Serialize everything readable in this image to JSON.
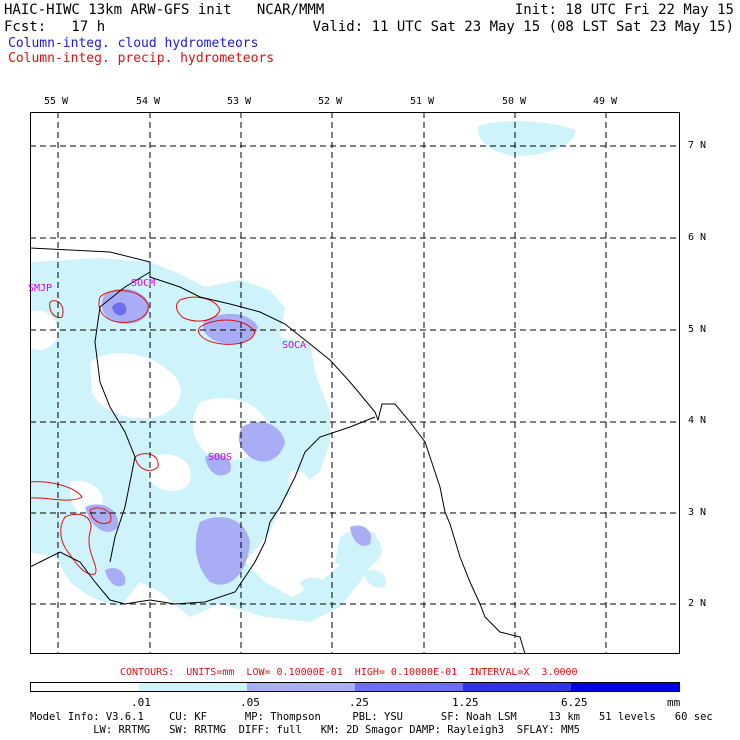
{
  "header": {
    "line1_left": "HAIC-HIWC 13km ARW-GFS init   NCAR/MMM",
    "line1_right": "Init: 18 UTC Fri 22 May 15",
    "line2_left": "Fcst:   17 h",
    "line2_right": "Valid: 11 UTC Sat 23 May 15 (08 LST Sat 23 May 15)",
    "legend_blue": "Column-integ. cloud hydrometeors",
    "legend_red": "Column-integ. precip. hydrometeors"
  },
  "map": {
    "lon_labels": [
      "55 W",
      "54 W",
      "53 W",
      "52 W",
      "51 W",
      "50 W",
      "49 W"
    ],
    "lat_labels": [
      "7 N",
      "6 N",
      "5 N",
      "4 N",
      "3 N",
      "2 N"
    ],
    "station_labels": [
      "SMJP",
      "SOCM",
      "SOCA",
      "SOOS"
    ],
    "fill_colors": [
      "#ffffff",
      "#cef3fb",
      "#a9adf6",
      "#6e6ef0",
      "#3232e6",
      "#0000e8"
    ]
  },
  "contours_text": "CONTOURS:  UNITS=mm  LOW= 0.10000E-01  HIGH= 0.10000E-01  INTERVAL=X  3.0000",
  "colorbar": {
    "labels": [
      ".01",
      ".05",
      ".25",
      "1.25",
      "6.25",
      "mm"
    ],
    "colors": [
      "#ffffff",
      "#cef3fb",
      "#a9adf6",
      "#6e6ef0",
      "#3232e6",
      "#0000e8"
    ]
  },
  "model_info": {
    "line1": "Model Info: V3.6.1    CU: KF      MP: Thompson     PBL: YSU      SF: Noah LSM     13 km   51 levels   60 sec",
    "line2": "          LW: RRTMG   SW: RRTMG  DIFF: full   KM: 2D Smagor DAMP: Rayleigh3  SFLAY: MM5"
  }
}
